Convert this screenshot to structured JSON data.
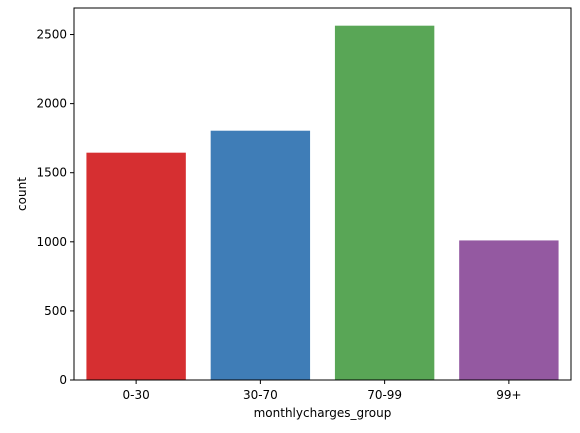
{
  "chart_data": {
    "type": "bar",
    "categories": [
      "0-30",
      "30-70",
      "70-99",
      "99+"
    ],
    "values": [
      1645,
      1804,
      2564,
      1010
    ],
    "colors": [
      "#d62f31",
      "#3f7db7",
      "#59a656",
      "#9459a1"
    ],
    "xlabel": "monthlycharges_group",
    "ylabel": "count",
    "ylim": [
      0,
      2692
    ],
    "yticks": [
      0,
      500,
      1000,
      1500,
      2000,
      2500
    ],
    "grid": false,
    "legend": "none"
  }
}
